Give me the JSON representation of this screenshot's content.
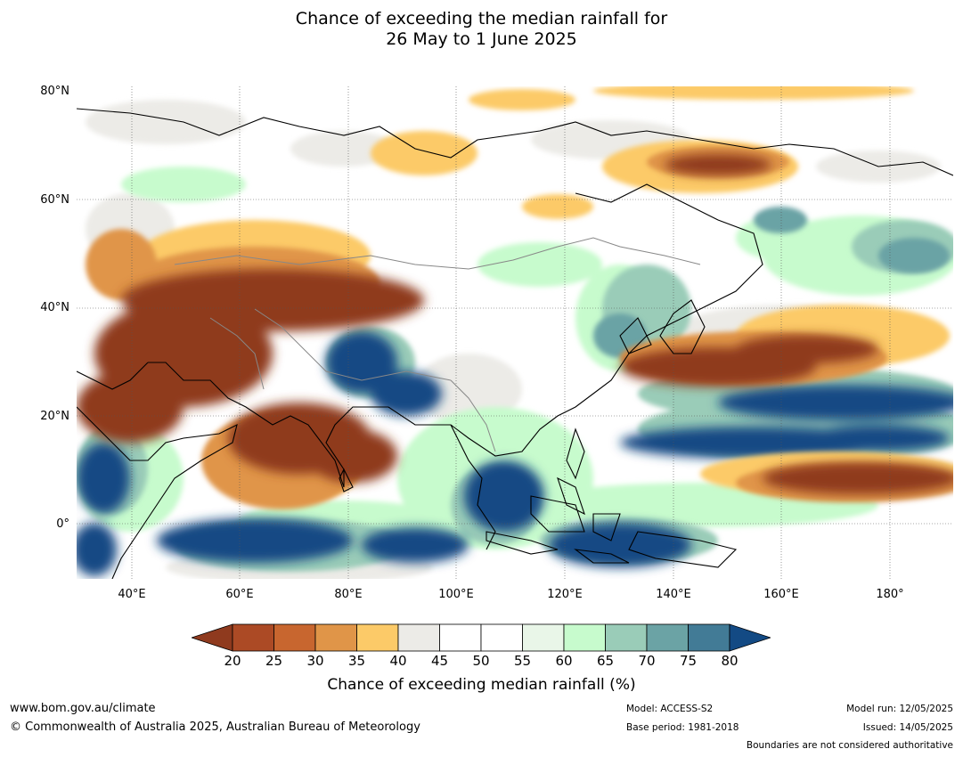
{
  "title": {
    "line1": "Chance of exceeding the median rainfall for",
    "line2": "26 May to 1 June 2025"
  },
  "map": {
    "lat_labels": [
      "80°N",
      "60°N",
      "40°N",
      "20°N",
      "0°"
    ],
    "lon_labels": [
      "40°E",
      "60°E",
      "80°E",
      "100°E",
      "120°E",
      "140°E",
      "160°E",
      "180°"
    ],
    "extent": {
      "lon_min": 30,
      "lon_max": 190,
      "lat_min": -10,
      "lat_max": 80
    }
  },
  "colorbar": {
    "ticks": [
      "20",
      "25",
      "30",
      "35",
      "40",
      "45",
      "50",
      "55",
      "60",
      "65",
      "70",
      "75",
      "80"
    ],
    "colors": [
      "#8f3a1e",
      "#ac4a25",
      "#c8662f",
      "#e09548",
      "#fcca68",
      "#ecebe7",
      "#ffffff",
      "#ffffff",
      "#e9f6e8",
      "#c7fbcd",
      "#9accb8",
      "#6ba3a5",
      "#427b96",
      "#134a84"
    ],
    "title": "Chance of exceeding median rainfall (%)"
  },
  "footer": {
    "website": "www.bom.gov.au/climate",
    "copyright": "© Commonwealth of Australia 2025, Australian Bureau of Meteorology",
    "model": "Model: ACCESS-S2",
    "base_period": "Base period: 1981-2018",
    "model_run": "Model run: 12/05/2025",
    "issued": "Issued: 14/05/2025",
    "disclaimer": "Boundaries are not considered authoritative"
  }
}
